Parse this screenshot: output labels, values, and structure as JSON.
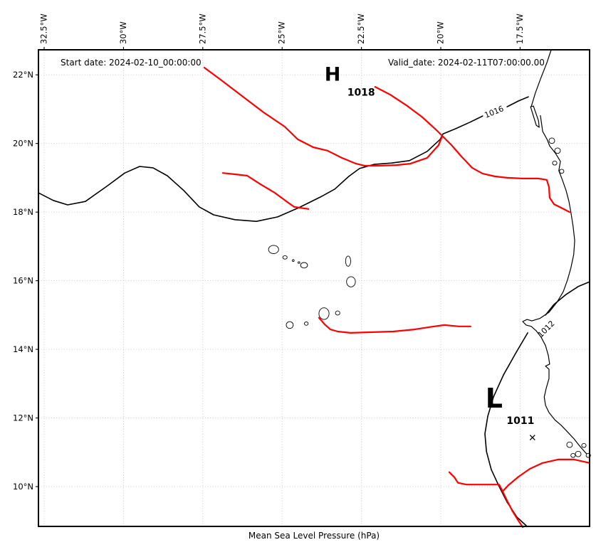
{
  "header": {
    "start_date": "Start date: 2024-02-10_00:00:00",
    "valid_date": "Valid_date: 2024-02-11T07:00:00.00"
  },
  "axis": {
    "xlabel": "Mean Sea Level Pressure (hPa)",
    "x_ticks": [
      {
        "label": "32.5°W",
        "lon_w": 32.5
      },
      {
        "label": "30°W",
        "lon_w": 30
      },
      {
        "label": "27.5°W",
        "lon_w": 27.5
      },
      {
        "label": "25°W",
        "lon_w": 25
      },
      {
        "label": "22.5°W",
        "lon_w": 22.5
      },
      {
        "label": "20°W",
        "lon_w": 20
      },
      {
        "label": "17.5°W",
        "lon_w": 17.5
      }
    ],
    "y_ticks": [
      {
        "label": "22°N",
        "lat": 22
      },
      {
        "label": "20°N",
        "lat": 20
      },
      {
        "label": "18°N",
        "lat": 18
      },
      {
        "label": "16°N",
        "lat": 16
      },
      {
        "label": "14°N",
        "lat": 14
      },
      {
        "label": "12°N",
        "lat": 12
      },
      {
        "label": "10°N",
        "lat": 10
      }
    ]
  },
  "colors": {
    "front": "#ff0000",
    "contour": "#000000",
    "coast": "#000000",
    "grid": "#c6c6c6",
    "background": "#ffffff"
  },
  "chart_data": {
    "type": "map",
    "title": "Mean Sea Level Pressure (hPa)",
    "grid": true,
    "lon_w_range": [
      32.68,
      15.31
    ],
    "lat_range": [
      8.84,
      22.73
    ],
    "pressure_centers": [
      {
        "symbol": "H",
        "value": "1018",
        "symbol_lon_w": 23.41,
        "symbol_lat": 22.03,
        "value_lon_w": 22.51,
        "value_lat": 21.5
      },
      {
        "symbol": "L",
        "value": "1011",
        "symbol_lon_w": 18.32,
        "symbol_lat": 12.59,
        "value_lon_w": 17.49,
        "value_lat": 11.93,
        "cross_lon_w": 17.11,
        "cross_lat": 11.43
      }
    ],
    "isobars": [
      {
        "value": "1016",
        "label": {
          "lon_w": 18.29,
          "lat": 20.93,
          "rotation": -22
        },
        "segments": [
          [
            [
              32.68,
              18.56
            ],
            [
              32.21,
              18.34
            ],
            [
              31.76,
              18.21
            ],
            [
              31.2,
              18.31
            ],
            [
              30.53,
              18.75
            ],
            [
              29.96,
              19.14
            ],
            [
              29.49,
              19.33
            ],
            [
              29.07,
              19.29
            ],
            [
              28.62,
              19.06
            ],
            [
              28.1,
              18.63
            ],
            [
              27.61,
              18.15
            ],
            [
              27.16,
              17.92
            ],
            [
              26.49,
              17.78
            ],
            [
              25.81,
              17.73
            ],
            [
              25.14,
              17.86
            ],
            [
              24.47,
              18.13
            ],
            [
              23.79,
              18.44
            ],
            [
              23.34,
              18.67
            ],
            [
              22.9,
              19.04
            ],
            [
              22.56,
              19.27
            ],
            [
              22.11,
              19.39
            ],
            [
              21.55,
              19.43
            ],
            [
              20.99,
              19.5
            ],
            [
              20.43,
              19.77
            ],
            [
              20.02,
              20.12
            ],
            [
              19.93,
              20.28
            ],
            [
              19.53,
              20.43
            ],
            [
              19.08,
              20.62
            ],
            [
              18.68,
              20.8
            ]
          ],
          [
            [
              17.91,
              21.07
            ],
            [
              17.55,
              21.24
            ],
            [
              17.24,
              21.36
            ]
          ]
        ]
      },
      {
        "value": "1012",
        "label": {
          "lon_w": 16.62,
          "lat": 14.62,
          "rotation": -45
        },
        "segments": [
          [
            [
              15.31,
              15.97
            ],
            [
              15.67,
              15.83
            ],
            [
              16.05,
              15.6
            ],
            [
              16.43,
              15.31
            ],
            [
              16.7,
              15.0
            ]
          ],
          [
            [
              17.26,
              14.48
            ],
            [
              17.62,
              13.92
            ],
            [
              18.02,
              13.26
            ],
            [
              18.34,
              12.61
            ],
            [
              18.52,
              12.05
            ],
            [
              18.61,
              11.54
            ],
            [
              18.56,
              11.02
            ],
            [
              18.41,
              10.5
            ],
            [
              18.18,
              10.04
            ],
            [
              17.91,
              9.55
            ],
            [
              17.6,
              9.11
            ],
            [
              17.28,
              8.84
            ]
          ]
        ]
      }
    ],
    "fronts": [
      [
        [
          27.45,
          22.21
        ],
        [
          26.94,
          21.86
        ],
        [
          26.26,
          21.38
        ],
        [
          25.59,
          20.91
        ],
        [
          24.92,
          20.49
        ],
        [
          24.51,
          20.12
        ],
        [
          24.02,
          19.89
        ],
        [
          23.57,
          19.79
        ],
        [
          23.12,
          19.58
        ],
        [
          22.67,
          19.41
        ],
        [
          22.4,
          19.35
        ],
        [
          21.95,
          19.35
        ],
        [
          21.41,
          19.37
        ],
        [
          20.96,
          19.41
        ],
        [
          20.43,
          19.58
        ],
        [
          20.07,
          19.95
        ],
        [
          19.95,
          20.22
        ]
      ],
      [
        [
          22.07,
          21.65
        ],
        [
          21.59,
          21.42
        ],
        [
          21.05,
          21.09
        ],
        [
          20.6,
          20.78
        ],
        [
          20.16,
          20.41
        ],
        [
          19.95,
          20.22
        ]
      ],
      [
        [
          19.95,
          20.22
        ],
        [
          19.66,
          19.95
        ],
        [
          19.35,
          19.62
        ],
        [
          19.01,
          19.29
        ],
        [
          18.68,
          19.12
        ],
        [
          18.29,
          19.04
        ],
        [
          17.91,
          19.0
        ],
        [
          17.44,
          18.98
        ],
        [
          16.93,
          18.98
        ],
        [
          16.66,
          18.94
        ],
        [
          16.59,
          18.73
        ],
        [
          16.57,
          18.42
        ],
        [
          16.43,
          18.23
        ],
        [
          16.17,
          18.11
        ],
        [
          15.94,
          18.0
        ]
      ],
      [
        [
          26.87,
          19.14
        ],
        [
          26.46,
          19.1
        ],
        [
          26.1,
          19.06
        ],
        [
          25.68,
          18.81
        ],
        [
          25.23,
          18.56
        ],
        [
          24.83,
          18.29
        ],
        [
          24.62,
          18.15
        ],
        [
          24.17,
          18.09
        ]
      ],
      [
        [
          23.84,
          14.92
        ],
        [
          23.66,
          14.73
        ],
        [
          23.48,
          14.58
        ],
        [
          23.25,
          14.52
        ],
        [
          22.85,
          14.48
        ],
        [
          22.22,
          14.5
        ],
        [
          21.5,
          14.52
        ],
        [
          20.83,
          14.58
        ],
        [
          20.34,
          14.65
        ],
        [
          19.89,
          14.71
        ],
        [
          19.44,
          14.67
        ],
        [
          19.06,
          14.67
        ]
      ],
      [
        [
          19.73,
          10.42
        ],
        [
          19.57,
          10.27
        ],
        [
          19.46,
          10.11
        ],
        [
          19.19,
          10.06
        ],
        [
          18.81,
          10.06
        ],
        [
          18.41,
          10.06
        ],
        [
          18.16,
          10.06
        ],
        [
          18.05,
          9.86
        ],
        [
          17.91,
          9.59
        ],
        [
          17.75,
          9.3
        ],
        [
          17.57,
          9.03
        ],
        [
          17.42,
          8.82
        ]
      ],
      [
        [
          15.31,
          10.69
        ],
        [
          15.8,
          10.79
        ],
        [
          16.3,
          10.79
        ],
        [
          16.79,
          10.69
        ],
        [
          17.19,
          10.52
        ],
        [
          17.55,
          10.29
        ],
        [
          17.87,
          10.04
        ],
        [
          18.03,
          9.88
        ]
      ]
    ],
    "coastlines": [
      {
        "closed": false,
        "points": [
          [
            16.52,
            22.73
          ],
          [
            16.66,
            22.34
          ],
          [
            16.84,
            21.92
          ],
          [
            17.02,
            21.47
          ],
          [
            17.15,
            21.07
          ]
        ]
      },
      {
        "closed": true,
        "points": [
          [
            17.17,
            21.07
          ],
          [
            16.99,
            20.53
          ],
          [
            16.9,
            20.47
          ],
          [
            16.92,
            20.66
          ],
          [
            17.08,
            21.09
          ]
        ]
      },
      {
        "closed": false,
        "points": [
          [
            16.86,
            20.82
          ],
          [
            16.79,
            20.35
          ],
          [
            16.65,
            20.12
          ],
          [
            16.57,
            19.93
          ],
          [
            16.39,
            19.72
          ],
          [
            16.23,
            19.48
          ],
          [
            16.28,
            19.21
          ],
          [
            16.17,
            18.94
          ],
          [
            16.05,
            18.63
          ],
          [
            15.96,
            18.31
          ],
          [
            15.9,
            18.0
          ],
          [
            15.83,
            17.59
          ],
          [
            15.78,
            17.17
          ],
          [
            15.81,
            16.76
          ],
          [
            15.9,
            16.37
          ],
          [
            16.01,
            16.01
          ],
          [
            16.14,
            15.68
          ],
          [
            16.34,
            15.37
          ],
          [
            16.59,
            15.08
          ],
          [
            16.88,
            14.9
          ],
          [
            17.13,
            14.83
          ],
          [
            17.28,
            14.87
          ],
          [
            17.42,
            14.81
          ],
          [
            17.31,
            14.71
          ],
          [
            17.15,
            14.67
          ],
          [
            16.99,
            14.54
          ],
          [
            16.84,
            14.36
          ],
          [
            16.7,
            14.11
          ],
          [
            16.61,
            13.82
          ],
          [
            16.57,
            13.57
          ],
          [
            16.7,
            13.51
          ],
          [
            16.59,
            13.42
          ],
          [
            16.59,
            13.15
          ],
          [
            16.68,
            12.86
          ],
          [
            16.74,
            12.61
          ],
          [
            16.7,
            12.37
          ],
          [
            16.59,
            12.16
          ],
          [
            16.41,
            11.95
          ],
          [
            16.21,
            11.79
          ],
          [
            16.01,
            11.6
          ],
          [
            15.8,
            11.39
          ],
          [
            15.62,
            11.18
          ],
          [
            15.44,
            10.99
          ],
          [
            15.31,
            10.87
          ]
        ]
      }
    ],
    "island_blobs": [
      [
        25.27,
        16.91,
        0.16,
        0.12
      ],
      [
        24.91,
        16.68,
        0.07,
        0.05
      ],
      [
        24.65,
        16.59,
        0.03,
        0.03
      ],
      [
        24.47,
        16.53,
        0.03,
        0.025
      ],
      [
        24.31,
        16.45,
        0.11,
        0.08
      ],
      [
        22.92,
        16.57,
        0.08,
        0.15
      ],
      [
        22.83,
        15.97,
        0.14,
        0.15
      ],
      [
        23.68,
        15.04,
        0.16,
        0.17
      ],
      [
        23.25,
        15.06,
        0.07,
        0.06
      ],
      [
        24.76,
        14.71,
        0.11,
        0.1
      ],
      [
        24.24,
        14.75,
        0.06,
        0.05
      ],
      [
        16.5,
        20.08,
        0.09,
        0.08
      ],
      [
        16.32,
        19.79,
        0.09,
        0.08
      ],
      [
        16.41,
        19.43,
        0.07,
        0.06
      ],
      [
        16.19,
        19.19,
        0.07,
        0.06
      ],
      [
        15.94,
        11.22,
        0.09,
        0.08
      ],
      [
        15.67,
        10.95,
        0.09,
        0.08
      ],
      [
        15.49,
        11.2,
        0.07,
        0.06
      ],
      [
        15.35,
        10.91,
        0.07,
        0.06
      ],
      [
        15.83,
        10.91,
        0.07,
        0.06
      ]
    ]
  }
}
